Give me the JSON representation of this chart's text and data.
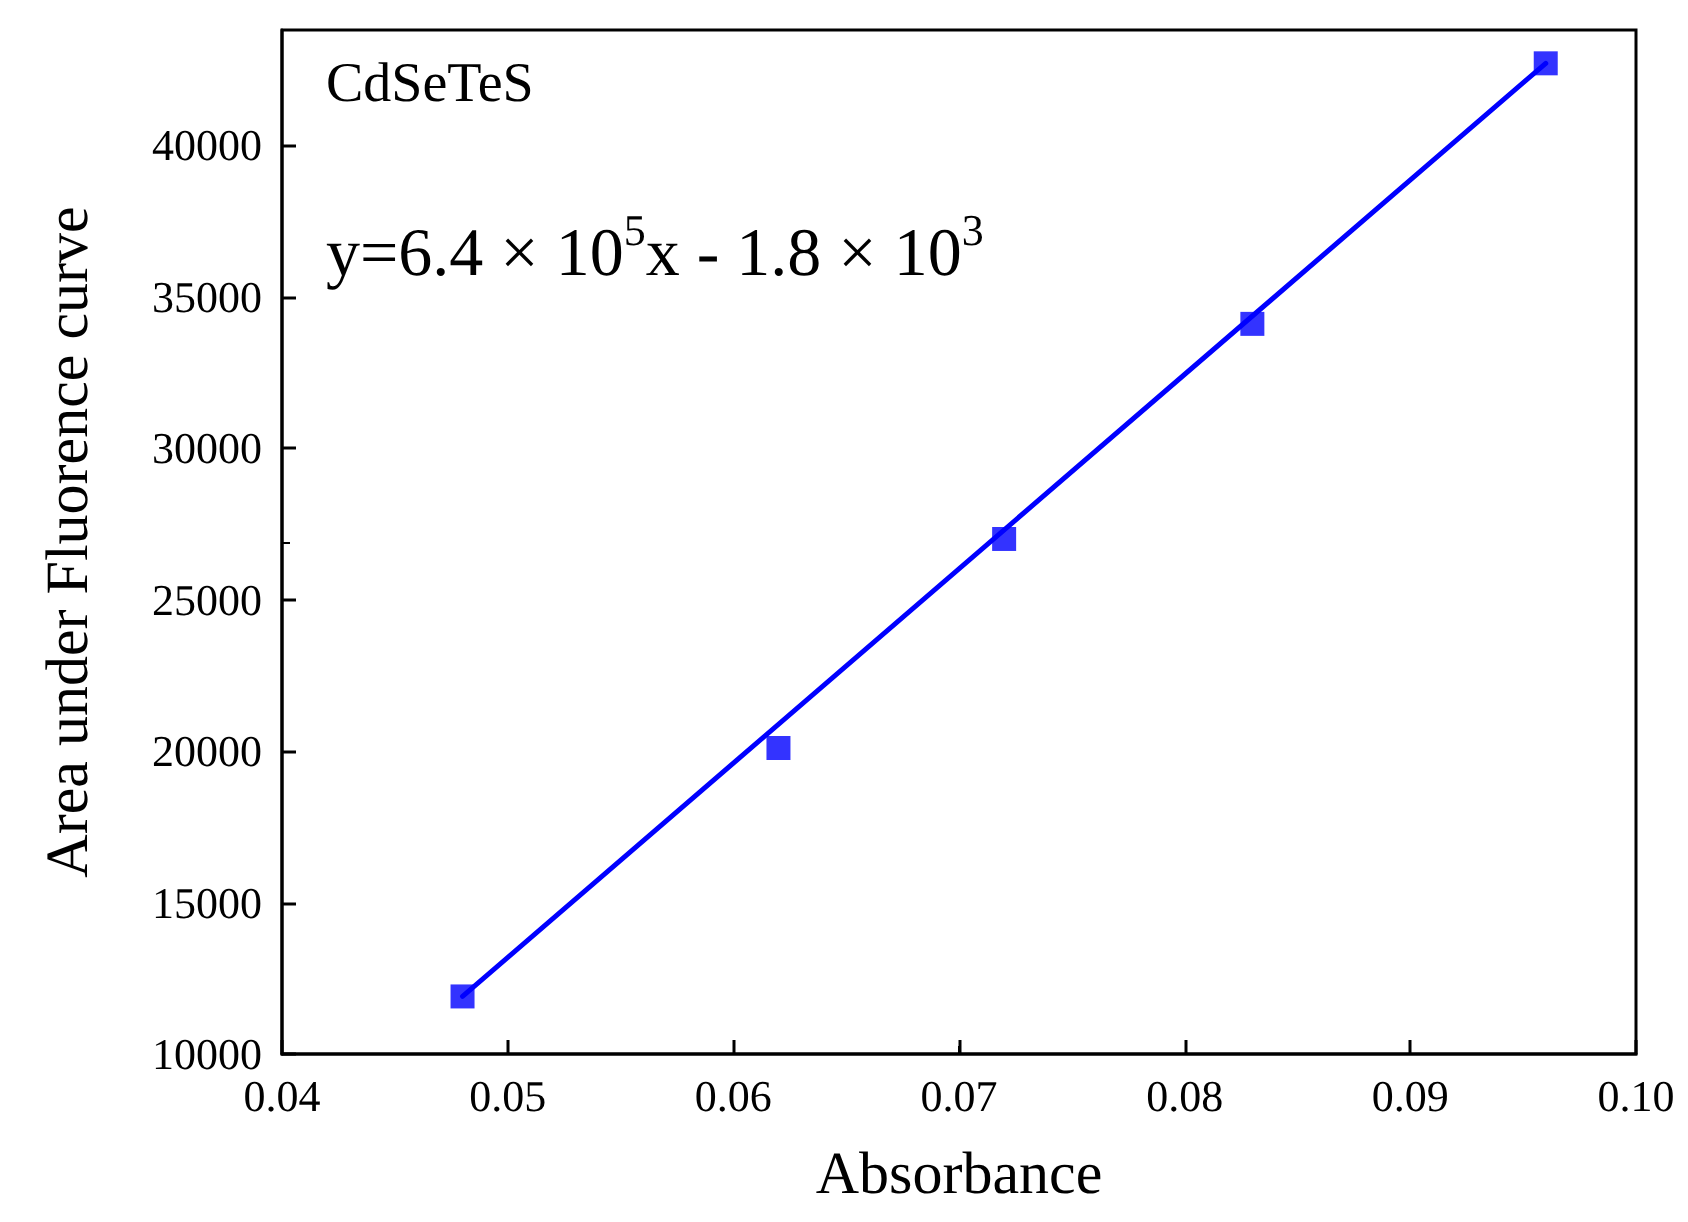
{
  "chart_data": {
    "type": "scatter",
    "xlabel": "Absorbance",
    "ylabel": "Area under Fluorence curve",
    "annotations": [
      "CdSeTeS",
      "y=6.4 × 10$^{5}$x - 1.8 × 10$^{3}$"
    ],
    "series": [
      {
        "color": "#0000ff",
        "marker": "square",
        "x": [
          0.048,
          0.062,
          0.072,
          0.083,
          0.096
        ],
        "values": [
          11900,
          20100,
          27000,
          34100,
          42700
        ]
      },
      {
        "type": "line",
        "color": "#0000ff",
        "marker": "none",
        "line_style": "solid",
        "x": [
          0.048,
          0.096
        ],
        "values": [
          11900,
          42700
        ]
      }
    ],
    "xlim": [
      0.04,
      0.1
    ],
    "xticks": [
      0.04,
      0.05,
      0.06,
      0.07,
      0.08,
      0.09,
      {
        "value": 0.1,
        "label": "0.10"
      }
    ],
    "ylim": [
      10000,
      43800
    ],
    "yticks": [
      10000,
      15000,
      20000,
      25000,
      30000,
      35000,
      40000
    ],
    "grid": false
  }
}
